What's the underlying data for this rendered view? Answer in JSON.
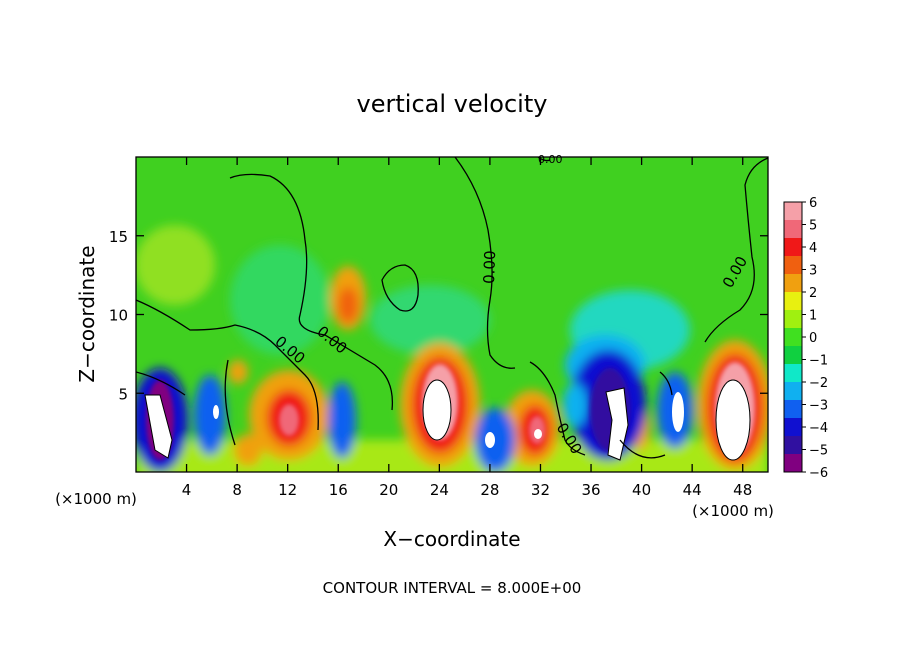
{
  "chart_data": {
    "type": "heatmap",
    "title": "vertical velocity",
    "xlabel": "X−coordinate",
    "ylabel": "Z−coordinate",
    "x_unit": "(×1000 m)",
    "y_unit": "(×1000 m)",
    "footer": "CONTOUR INTERVAL = 8.000E+00",
    "xlim": [
      0,
      50
    ],
    "ylim": [
      0,
      20
    ],
    "x_ticks": [
      4,
      8,
      12,
      16,
      20,
      24,
      28,
      32,
      36,
      40,
      44,
      48
    ],
    "y_ticks": [
      5,
      10,
      15
    ],
    "colorbar": {
      "levels": [
        6,
        5,
        4,
        3,
        2,
        1,
        0,
        -1,
        -2,
        -3,
        -4,
        -5,
        -6
      ],
      "labels": [
        "6",
        "5",
        "4",
        "3",
        "2",
        "1",
        "0",
        "−1",
        "−2",
        "−3",
        "−4",
        "−5",
        "−6"
      ],
      "colors": [
        "#f5a0a8",
        "#f06878",
        "#f01818",
        "#f06010",
        "#f0a010",
        "#e8f010",
        "#a0f010",
        "#40e020",
        "#10d040",
        "#10e8c8",
        "#10b0f0",
        "#1060f0",
        "#1010d0",
        "#3010a0",
        "#800080"
      ]
    },
    "contour_labels": [
      "0.00",
      "0.00",
      "0.00",
      "0.00",
      "0.00",
      "0.00"
    ],
    "features": [
      {
        "kind": "updraft",
        "x": 16.5,
        "z": 10.3,
        "value": 3
      },
      {
        "kind": "updraft",
        "x": 23.8,
        "z": 4,
        "value": 6
      },
      {
        "kind": "updraft",
        "x": 46.5,
        "z": 4.2,
        "value": 6
      },
      {
        "kind": "updraft",
        "x": 31.5,
        "z": 2.8,
        "value": 5
      },
      {
        "kind": "updraft",
        "x": 12,
        "z": 3,
        "value": 4.5
      },
      {
        "kind": "downdraft",
        "x": 38,
        "z": 3.5,
        "value": -6
      },
      {
        "kind": "downdraft",
        "x": 1.5,
        "z": 3.5,
        "value": -6
      }
    ]
  }
}
